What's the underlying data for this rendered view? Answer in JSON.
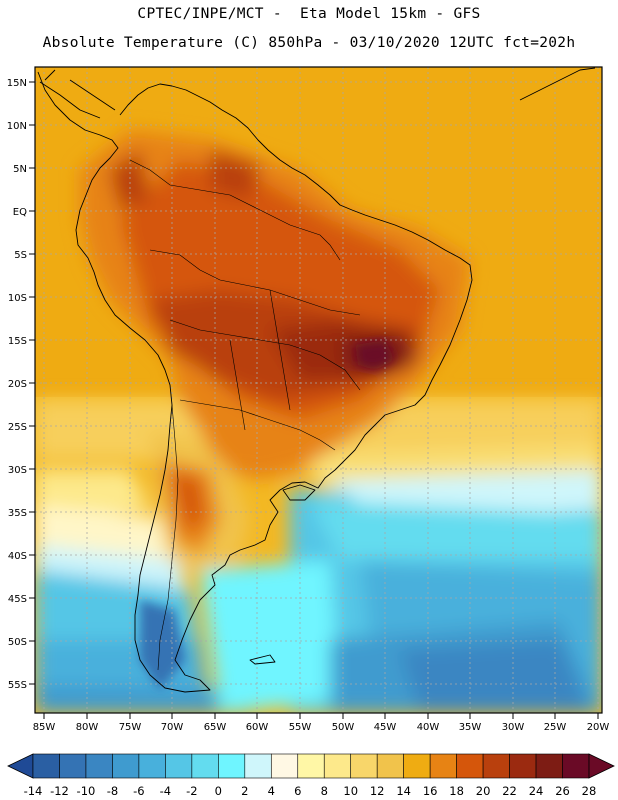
{
  "header": {
    "line1": "CPTEC/INPE/MCT -  Eta Model 15km - GFS",
    "line2": "Absolute Temperature (C) 850hPa - 03/10/2020 12UTC fct=202h"
  },
  "axes": {
    "lat_labels": [
      "15N",
      "10N",
      "5N",
      "EQ",
      "5S",
      "10S",
      "15S",
      "20S",
      "25S",
      "30S",
      "35S",
      "40S",
      "45S",
      "50S",
      "55S"
    ],
    "lon_labels": [
      "85W",
      "80W",
      "75W",
      "70W",
      "65W",
      "60W",
      "55W",
      "50W",
      "45W",
      "40W",
      "35W",
      "30W",
      "25W",
      "20W"
    ]
  },
  "colorbar": {
    "labels": [
      "-14",
      "-12",
      "-10",
      "-8",
      "-6",
      "-4",
      "-2",
      "0",
      "2",
      "4",
      "6",
      "8",
      "10",
      "12",
      "14",
      "16",
      "18",
      "20",
      "22",
      "24",
      "26",
      "28"
    ],
    "colors": [
      "#1f4a96",
      "#2a5fa3",
      "#3473b4",
      "#3a86c2",
      "#3f9bcf",
      "#48b0dc",
      "#55c6e6",
      "#63dcef",
      "#6ff5ff",
      "#cff6fb",
      "#fff8e4",
      "#fff7a6",
      "#fde98b",
      "#f8d66a",
      "#f1c34b",
      "#efac12",
      "#e78314",
      "#d5560b",
      "#b9400d",
      "#9b2a10",
      "#7d1c14",
      "#6a0a26"
    ]
  }
}
